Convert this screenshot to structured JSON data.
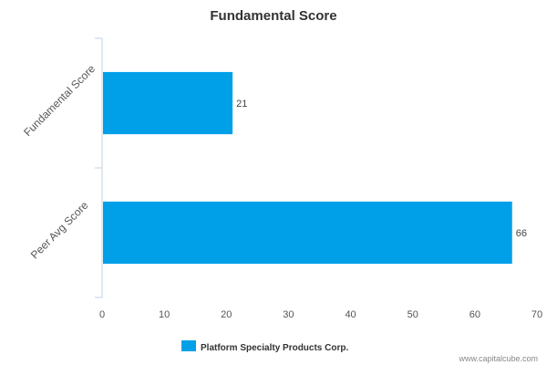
{
  "chart_data": {
    "type": "bar",
    "orientation": "horizontal",
    "title": "Fundamental Score",
    "categories": [
      "Fundamental Score",
      "Peer Avg Score"
    ],
    "series": [
      {
        "name": "Platform Specialty Products Corp.",
        "values": [
          21,
          66
        ],
        "color": "#00a0e9"
      }
    ],
    "data_labels": [
      "21",
      "66"
    ],
    "xlim": [
      0,
      70
    ],
    "x_ticks": [
      0,
      10,
      20,
      30,
      40,
      50,
      60,
      70
    ],
    "x_tick_labels": [
      "0",
      "10",
      "20",
      "30",
      "40",
      "50",
      "60",
      "70"
    ],
    "grid": false,
    "legend": "bottom-center"
  },
  "credit": "www.capitalcube.com",
  "colors": {
    "bar": "#00a0e9",
    "axis": "#c0d0e0"
  }
}
